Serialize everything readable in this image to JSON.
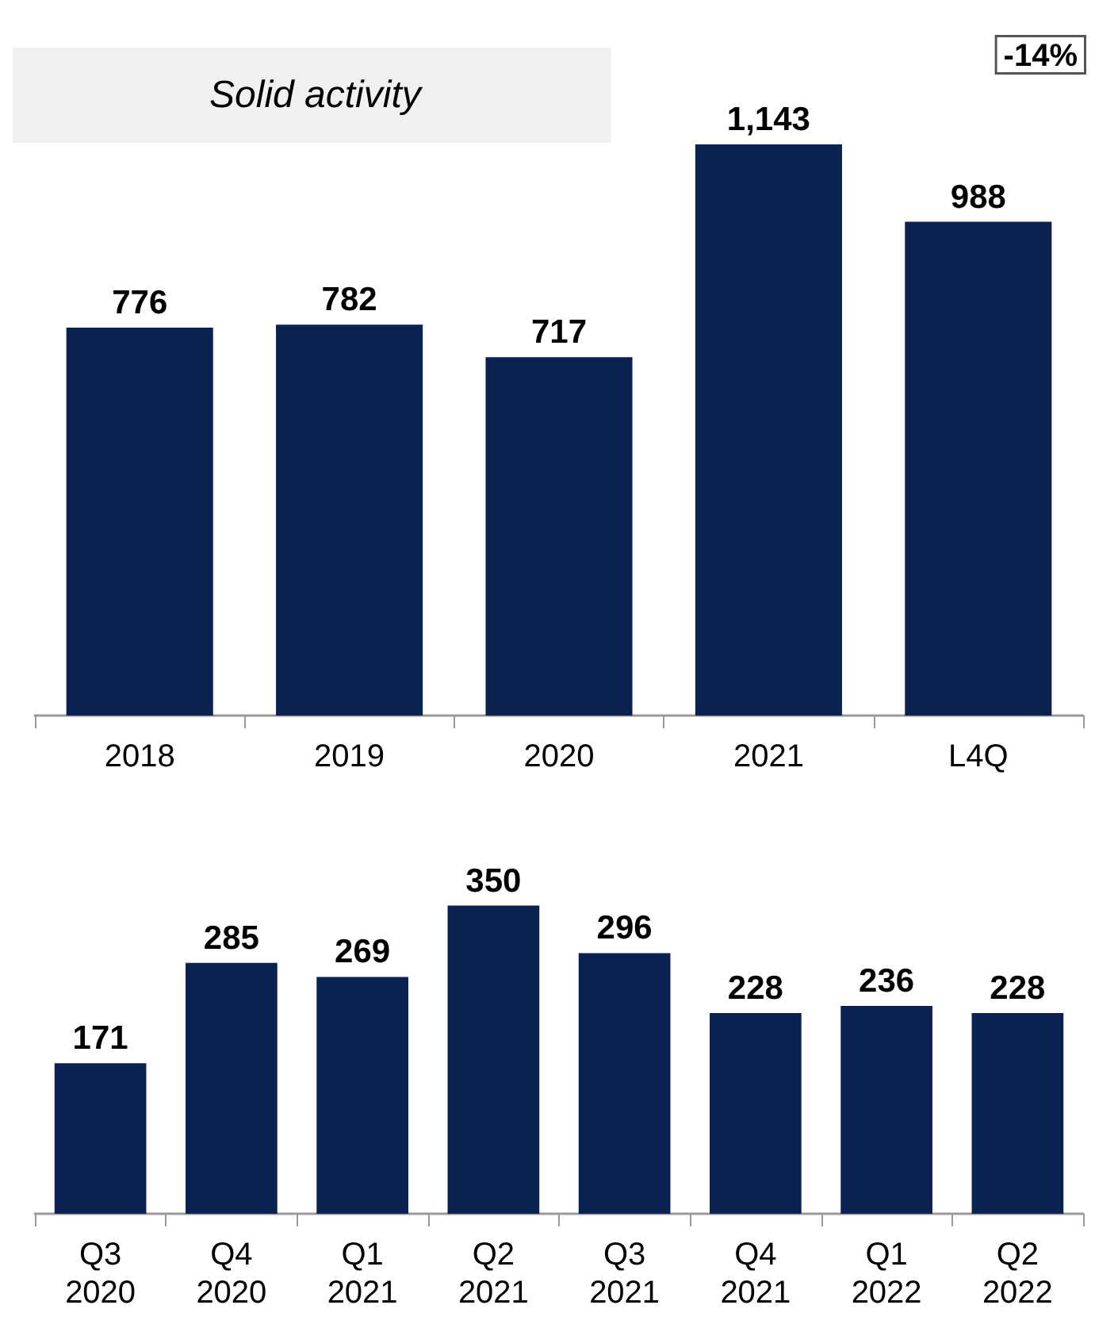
{
  "chart_data": [
    {
      "type": "bar",
      "categories": [
        "2018",
        "2019",
        "2020",
        "2021",
        "L4Q"
      ],
      "values": [
        776,
        782,
        717,
        1143,
        988
      ],
      "value_labels": [
        "776",
        "782",
        "717",
        "1,143",
        "988"
      ],
      "color": "#0b2150",
      "annotations": [
        "Solid activity",
        "-14%"
      ]
    },
    {
      "type": "bar",
      "categories": [
        "Q3 2020",
        "Q4 2020",
        "Q1 2021",
        "Q2 2021",
        "Q3 2021",
        "Q4 2021",
        "Q1 2022",
        "Q2 2022"
      ],
      "values": [
        171,
        285,
        269,
        350,
        296,
        228,
        236,
        228
      ],
      "color": "#0b2150",
      "data_labels": true
    }
  ]
}
